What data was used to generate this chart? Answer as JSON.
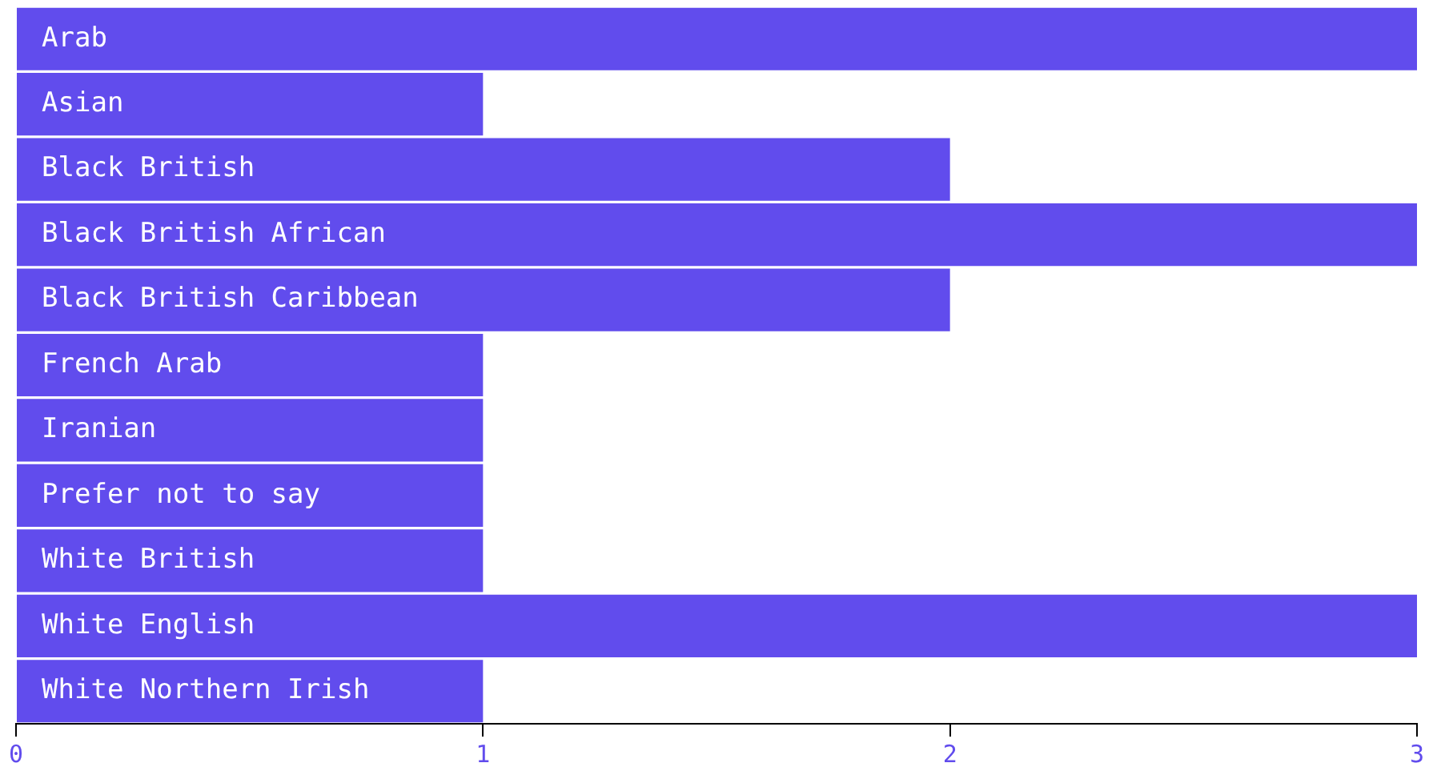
{
  "chart_data": {
    "type": "bar",
    "orientation": "horizontal",
    "categories": [
      "Arab",
      "Asian",
      "Black British",
      "Black British African",
      "Black British Caribbean",
      "French Arab",
      "Iranian",
      "Prefer not to say",
      "White British",
      "White English",
      "White Northern Irish"
    ],
    "values": [
      3,
      1,
      2,
      3,
      2,
      1,
      1,
      1,
      1,
      3,
      1
    ],
    "color": "#614ced",
    "xlim": [
      0,
      3
    ],
    "xticks": [
      0,
      1,
      2,
      3
    ],
    "grid": false,
    "legend": false
  }
}
